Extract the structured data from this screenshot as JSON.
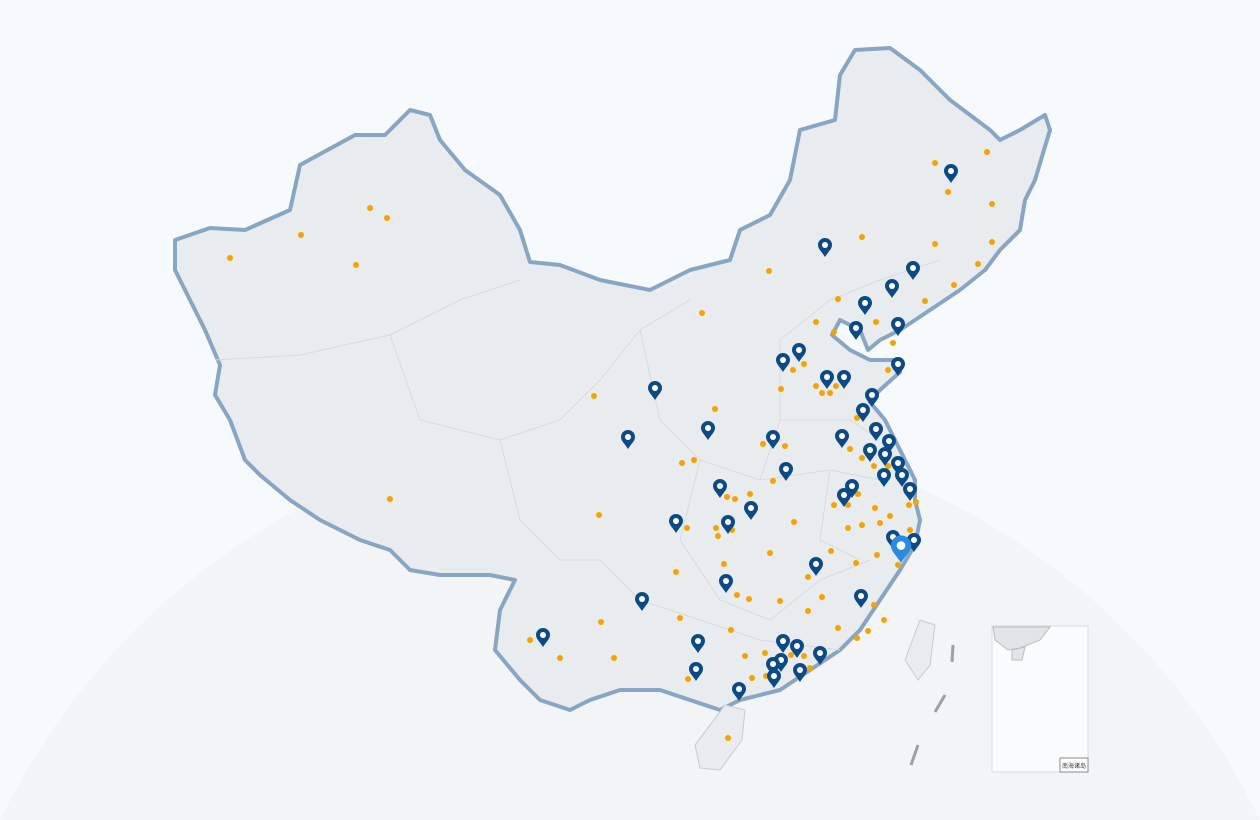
{
  "map": {
    "inset_label": "南海诸岛",
    "colors": {
      "land": "#e9ecef",
      "border": "#88a6c3",
      "province_lines": "#d6dadf",
      "marker": "#0c4a86",
      "marker_highlight": "#2b8ae2",
      "city_dot": "#f5a300",
      "background": "#f7fafc"
    },
    "icons": {
      "marker": "map-pin-icon",
      "highlighted_marker": "map-pin-highlight-icon",
      "city": "city-dot-icon"
    }
  }
}
